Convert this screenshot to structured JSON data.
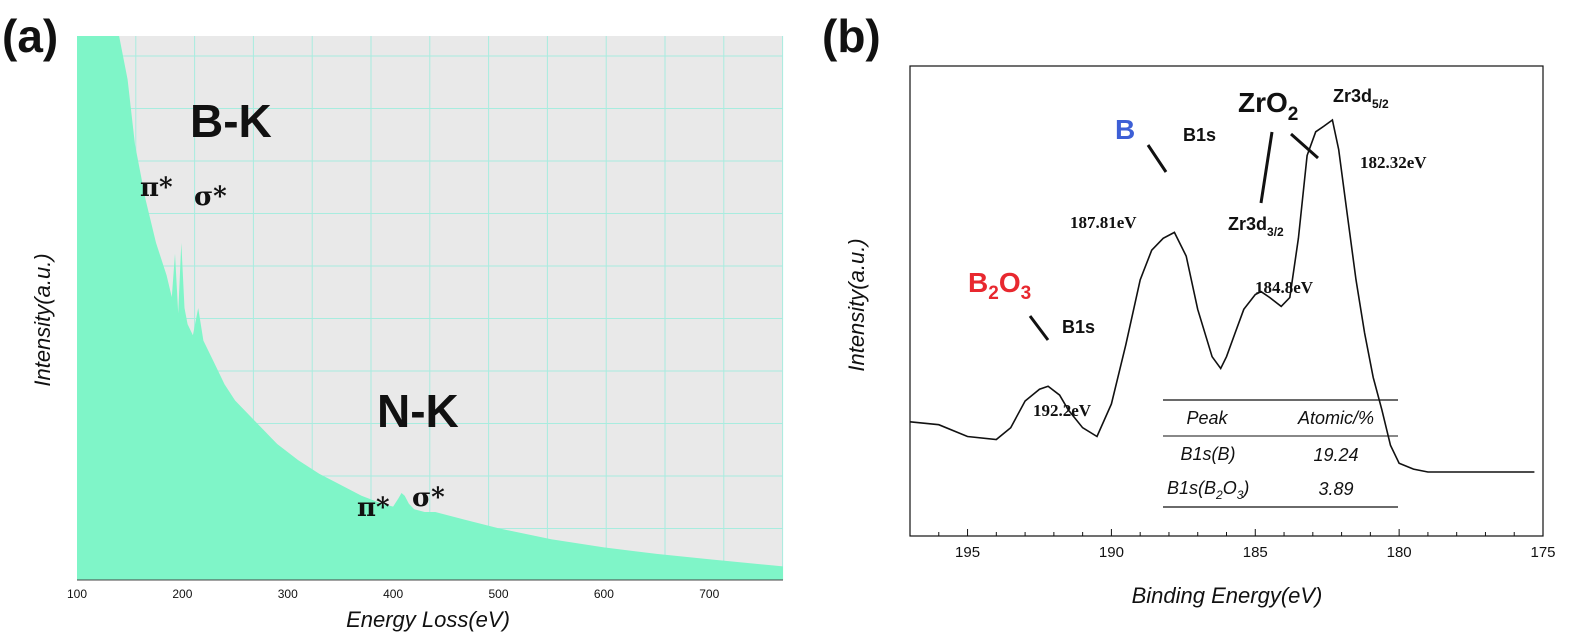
{
  "chart_data": [
    {
      "panel_label": "(a)",
      "type": "area",
      "xlabel": "Energy Loss(eV)",
      "ylabel": "Intensity(a.u.)",
      "xlim": [
        100,
        770
      ],
      "x_ticks": [
        "100",
        "200",
        "300",
        "400",
        "500",
        "600",
        "700"
      ],
      "grid": true,
      "fill_color": "#7ff5c8",
      "background_color": "#e9e9e9",
      "grid_color": "#a8ecdf",
      "spectrum": {
        "x": [
          100,
          120,
          140,
          148,
          155,
          165,
          175,
          185,
          190,
          193,
          196,
          199,
          202,
          205,
          210,
          215,
          220,
          230,
          240,
          250,
          270,
          290,
          310,
          330,
          350,
          370,
          390,
          400,
          405,
          408,
          411,
          415,
          420,
          430,
          440,
          450,
          470,
          500,
          550,
          600,
          650,
          700,
          770
        ],
        "y": [
          100,
          100,
          100,
          92,
          80,
          70,
          62,
          56,
          52,
          60,
          49,
          62,
          50,
          47,
          45,
          50,
          44,
          40,
          36,
          33,
          29,
          25,
          22,
          19.5,
          17.5,
          15.5,
          14,
          13.5,
          15,
          16,
          15.5,
          14,
          13,
          12.5,
          12.5,
          12,
          11,
          9.5,
          7.5,
          6,
          4.8,
          3.8,
          2.5
        ]
      },
      "annotations": {
        "bk_label": "B-K",
        "nk_label": "N-K",
        "bk_pi": "π*",
        "bk_sigma": "σ*",
        "nk_pi": "π*",
        "nk_sigma": "σ*"
      }
    },
    {
      "panel_label": "(b)",
      "type": "line",
      "xlabel": "Binding Energy(eV)",
      "ylabel": "Intensity(a.u.)",
      "xlim": [
        197,
        175
      ],
      "x_ticks": [
        "195",
        "190",
        "185",
        "180",
        "175"
      ],
      "grid": false,
      "line_color": "#111111",
      "spectrum": {
        "x": [
          197,
          196,
          195,
          194,
          193.5,
          193,
          192.5,
          192.2,
          191.8,
          191.5,
          191,
          190.5,
          190,
          189.5,
          189,
          188.6,
          188.2,
          187.81,
          187.4,
          187,
          186.5,
          186.2,
          186,
          185.7,
          185.4,
          185,
          184.8,
          184.5,
          184.1,
          183.8,
          183.5,
          183.2,
          182.9,
          182.6,
          182.32,
          182.1,
          181.8,
          181.5,
          181.2,
          180.9,
          180.6,
          180.3,
          180,
          179.5,
          179,
          178,
          177,
          176,
          175.3
        ],
        "y": [
          9,
          8.5,
          6.5,
          6,
          8,
          12.5,
          14.5,
          15,
          13.5,
          11,
          8,
          6.5,
          12,
          22,
          33,
          38,
          40,
          41,
          37,
          28,
          20,
          18,
          20,
          24,
          28,
          30.5,
          31,
          30,
          28.5,
          30,
          40,
          54,
          58,
          59,
          60,
          55,
          44,
          33,
          24,
          16.5,
          11,
          5,
          2,
          1,
          0.5,
          0.5,
          0.5,
          0.5,
          0.5
        ]
      },
      "species_labels": {
        "b": "B",
        "b2o3_main": "B",
        "b2o3_sub1": "2",
        "b2o3_o": "O",
        "b2o3_sub2": "3",
        "zro2_main": "ZrO",
        "zro2_sub": "2"
      },
      "species_colors": {
        "b": "#3d5fd6",
        "b2o3": "#e8282f",
        "zro2": "#111111"
      },
      "peak_labels": {
        "b1s_b": "B1s",
        "b1s_b2o3": "B1s",
        "zr3d52_main": "Zr3d",
        "zr3d52_sub": "5/2",
        "zr3d32_main": "Zr3d",
        "zr3d32_sub": "3/2"
      },
      "energy_labels": {
        "b": "187.81eV",
        "b2o3": "192.2eV",
        "zr52": "182.32eV",
        "zr32": "184.8eV"
      },
      "table": {
        "headers": [
          "Peak",
          "Atomic/%"
        ],
        "rows": [
          {
            "peak_main": "B1s(B)",
            "value": "19.24"
          },
          {
            "peak_main": "B1s(B",
            "peak_sub1": "2",
            "peak_mid": "O",
            "peak_sub2": "3",
            "peak_end": ")",
            "value": "3.89"
          }
        ]
      }
    }
  ]
}
